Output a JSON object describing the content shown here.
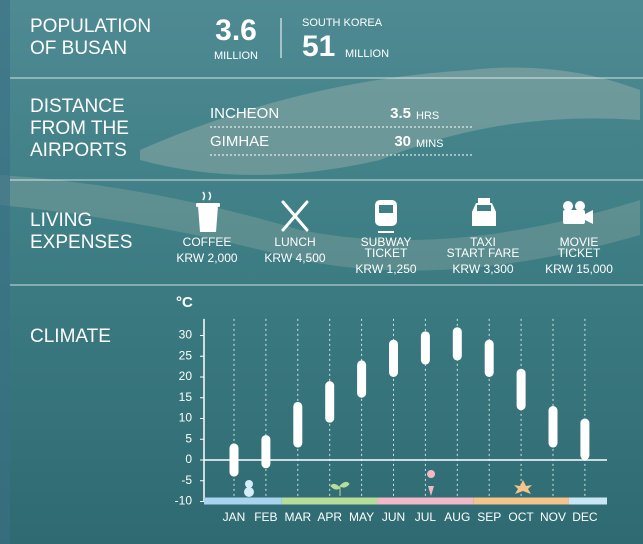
{
  "population": {
    "title": [
      "POPULATION",
      "OF BUSAN"
    ],
    "busan_value": "3.6",
    "busan_unit": "MILLION",
    "country_label": "SOUTH KOREA",
    "country_value": "51",
    "country_unit": "MILLION"
  },
  "distance": {
    "title": [
      "DISTANCE",
      "FROM THE",
      "AIRPORTS"
    ],
    "rows": [
      {
        "place": "INCHEON",
        "value": "3.5",
        "unit": "HRS"
      },
      {
        "place": "GIMHAE",
        "value": "30",
        "unit": "MINS"
      }
    ]
  },
  "expenses": {
    "title": [
      "LIVING",
      "EXPENSES"
    ],
    "items": [
      {
        "label": [
          "COFFEE"
        ],
        "price": "KRW 2,000"
      },
      {
        "label": [
          "LUNCH"
        ],
        "price": "KRW 4,500"
      },
      {
        "label": [
          "SUBWAY",
          "TICKET"
        ],
        "price": "KRW 1,250"
      },
      {
        "label": [
          "TAXI",
          "START FARE"
        ],
        "price": "KRW 3,300"
      },
      {
        "label": [
          "MOVIE",
          "TICKET"
        ],
        "price": "KRW 15,000"
      }
    ]
  },
  "chart_data": {
    "type": "range-bar",
    "title": "CLIMATE",
    "unit": "°C",
    "categories": [
      "JAN",
      "FEB",
      "MAR",
      "APR",
      "MAY",
      "JUN",
      "JUL",
      "AUG",
      "SEP",
      "OCT",
      "NOV",
      "DEC"
    ],
    "low": [
      -4,
      -2,
      3,
      9,
      15,
      20,
      23,
      24,
      20,
      12,
      3,
      0
    ],
    "high": [
      4,
      6,
      14,
      19,
      24,
      29,
      31,
      32,
      29,
      22,
      13,
      10
    ],
    "color": "#ffffff",
    "ylim": [
      -10,
      34
    ],
    "yticks": [
      30,
      25,
      20,
      15,
      10,
      5,
      0,
      -5,
      -10
    ]
  }
}
